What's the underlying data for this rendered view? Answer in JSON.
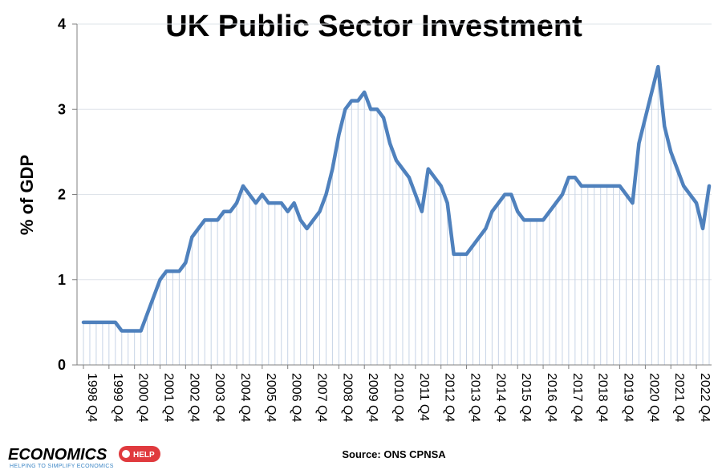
{
  "chart_data": {
    "type": "line",
    "title": "UK Public Sector Investment",
    "ylabel": "% of GDP",
    "xlabel": "",
    "ylim": [
      0,
      4
    ],
    "yticks": [
      "0",
      "1",
      "2",
      "3",
      "4"
    ],
    "x_tick_labels": [
      "1998 Q4",
      "1999 Q4",
      "2000 Q4",
      "2001 Q4",
      "2002 Q4",
      "2003 Q4",
      "2004 Q4",
      "2005 Q4",
      "2006 Q4",
      "2007 Q4",
      "2008 Q4",
      "2009 Q4",
      "2010 Q4",
      "2011 Q4",
      "2012 Q4",
      "2013 Q4",
      "2014 Q4",
      "2015 Q4",
      "2016 Q4",
      "2017 Q4",
      "2018 Q4",
      "2019 Q4",
      "2020 Q4",
      "2021 Q4",
      "2022 Q4"
    ],
    "x_start": "1998 Q4",
    "x_end": "2023 Q1",
    "grid": "horizontal",
    "drop_lines": true,
    "series": [
      {
        "color": "#4f81bd",
        "values": [
          0.5,
          0.5,
          0.5,
          0.5,
          0.5,
          0.5,
          0.4,
          0.4,
          0.4,
          0.4,
          0.6,
          0.8,
          1.0,
          1.1,
          1.1,
          1.1,
          1.2,
          1.5,
          1.6,
          1.7,
          1.7,
          1.7,
          1.8,
          1.8,
          1.9,
          2.1,
          2.0,
          1.9,
          2.0,
          1.9,
          1.9,
          1.9,
          1.8,
          1.9,
          1.7,
          1.6,
          1.7,
          1.8,
          2.0,
          2.3,
          2.7,
          3.0,
          3.1,
          3.1,
          3.2,
          3.0,
          3.0,
          2.9,
          2.6,
          2.4,
          2.3,
          2.2,
          2.0,
          1.8,
          2.3,
          2.2,
          2.1,
          1.9,
          1.3,
          1.3,
          1.3,
          1.4,
          1.5,
          1.6,
          1.8,
          1.9,
          2.0,
          2.0,
          1.8,
          1.7,
          1.7,
          1.7,
          1.7,
          1.8,
          1.9,
          2.0,
          2.2,
          2.2,
          2.1,
          2.1,
          2.1,
          2.1,
          2.1,
          2.1,
          2.1,
          2.0,
          1.9,
          2.6,
          2.9,
          3.2,
          3.5,
          2.8,
          2.5,
          2.3,
          2.1,
          2.0,
          1.9,
          1.6,
          2.1
        ]
      }
    ],
    "source": "Source: ONS CPNSA"
  },
  "logo": {
    "word": "ECONOMICS",
    "badge": "HELP",
    "tagline": "HELPING TO SIMPLIFY ECONOMICS",
    "word_color": "#3e87c6",
    "badge_color": "#e03a3e"
  }
}
